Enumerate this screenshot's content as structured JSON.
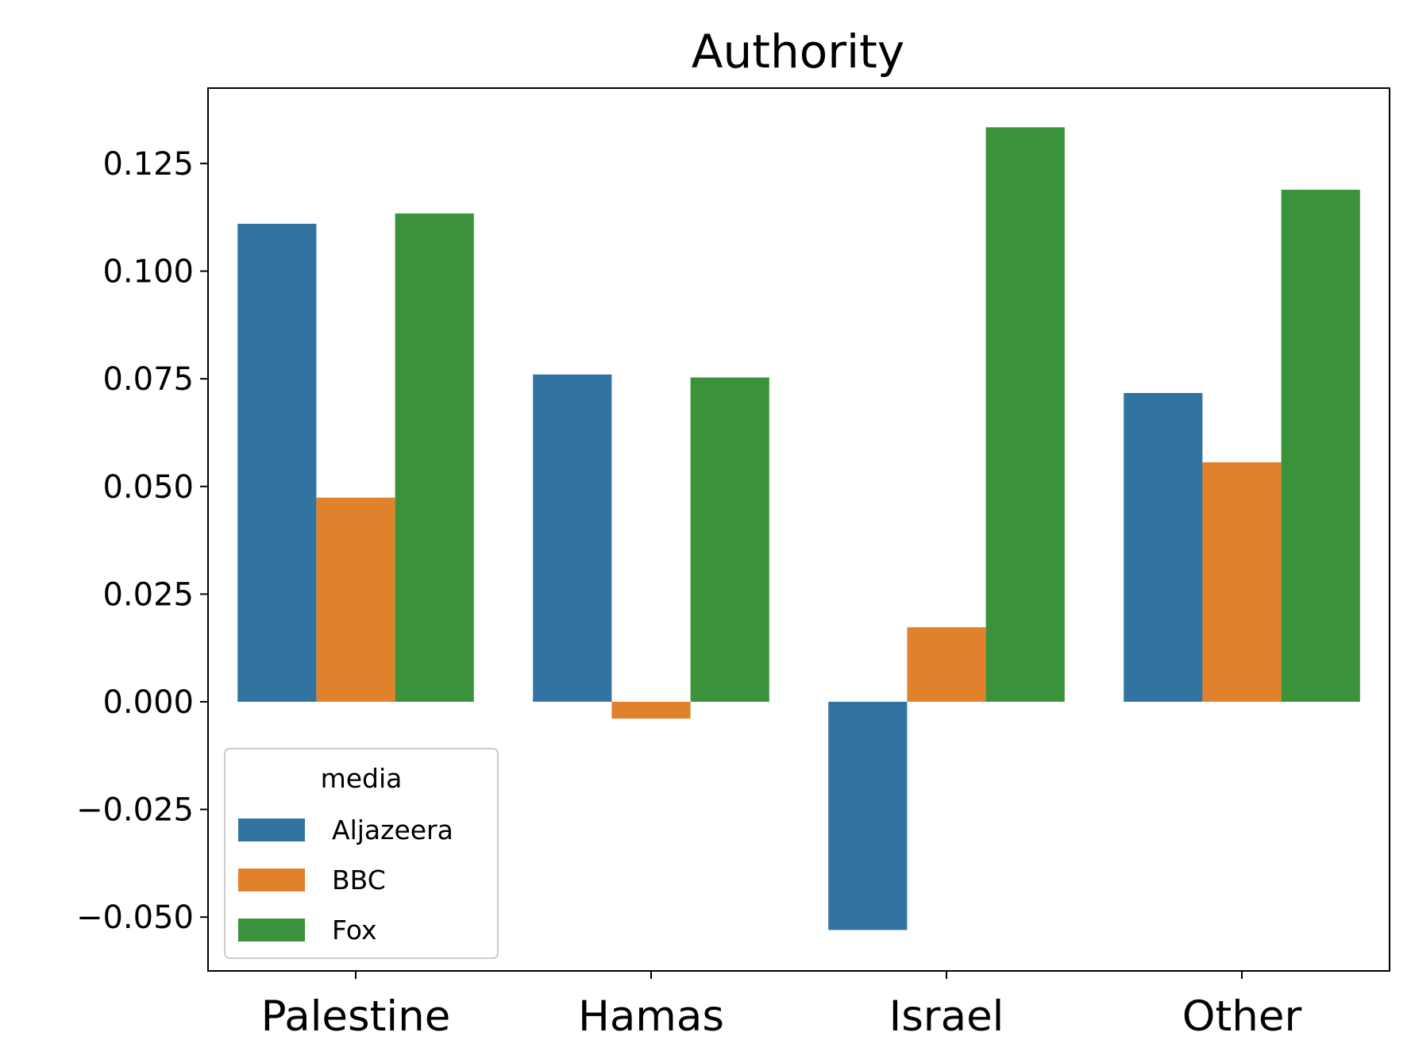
{
  "chart_data": {
    "type": "bar",
    "title": "Authority",
    "xlabel": "",
    "ylabel": "",
    "categories": [
      "Palestine",
      "Hamas",
      "Israel",
      "Other"
    ],
    "series": [
      {
        "name": "Aljazeera",
        "color": "#3274a1",
        "values": [
          0.111,
          0.076,
          -0.053,
          0.0717
        ]
      },
      {
        "name": "BBC",
        "color": "#e1812c",
        "values": [
          0.0474,
          -0.0039,
          0.0173,
          0.0556
        ]
      },
      {
        "name": "Fox",
        "color": "#3a923a",
        "values": [
          0.1134,
          0.0753,
          0.1334,
          0.1189
        ]
      }
    ],
    "ylim": [
      -0.0625,
      0.1425
    ],
    "yticks": [
      -0.05,
      -0.025,
      0.0,
      0.025,
      0.05,
      0.075,
      0.1,
      0.125
    ],
    "ytick_labels": [
      "−0.050",
      "−0.025",
      "0.000",
      "0.025",
      "0.050",
      "0.075",
      "0.100",
      "0.125"
    ],
    "grid": false,
    "legend": {
      "title": "media",
      "placement": "lower-left"
    }
  }
}
